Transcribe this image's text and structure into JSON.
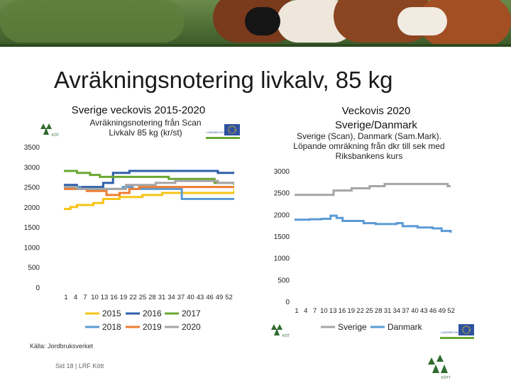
{
  "title": "Avräkningsnotering livkalv, 85 kg",
  "left": {
    "heading": "Sverige veckovis 2015-2020",
    "note_line1": "Avräkningsnotering från Scan",
    "note_line2": "Livkalv 85 kg (kr/st)"
  },
  "right": {
    "heading_line1": "Veckovis 2020",
    "heading_line2": "Sverige/Danmark",
    "note_line1": "Sverige (Scan), Danmark (Sam.Mark).",
    "note_line2": "Löpande omräkning från dkr till sek med",
    "note_line3": "Riksbankens kurs"
  },
  "logos": {
    "kott_text": "KÖTT",
    "lantbruk_text": "LANDSBYGDSPLAN"
  },
  "source": "Källa: Jordbruksverket",
  "footer": "Sid 18 | LRF Kött",
  "colors": {
    "2015": "#f5c518",
    "2016": "#2e5fa8",
    "2017": "#6aa832",
    "2018": "#5b9bd5",
    "2019": "#ed7d31",
    "2020": "#a5a5a5",
    "Sverige": "#a5a5a5",
    "Danmark": "#5b9bd5"
  },
  "chart_data": [
    {
      "type": "line",
      "title": "",
      "ylim": [
        0,
        3500
      ],
      "yticks": [
        "0",
        "500",
        "1000",
        "1500",
        "2000",
        "2500",
        "3000",
        "3500"
      ],
      "xticks": [
        "1",
        "4",
        "7",
        "10",
        "13",
        "16",
        "19",
        "22",
        "25",
        "28",
        "31",
        "34",
        "37",
        "40",
        "43",
        "46",
        "49",
        "52"
      ],
      "xrange": [
        1,
        53
      ],
      "legend": "bottom",
      "series": [
        {
          "name": "2015",
          "points": [
            [
              1,
              1950
            ],
            [
              3,
              2000
            ],
            [
              5,
              2050
            ],
            [
              10,
              2100
            ],
            [
              13,
              2200
            ],
            [
              18,
              2250
            ],
            [
              25,
              2300
            ],
            [
              31,
              2350
            ],
            [
              53,
              2450
            ]
          ]
        },
        {
          "name": "2016",
          "points": [
            [
              1,
              2550
            ],
            [
              5,
              2500
            ],
            [
              13,
              2600
            ],
            [
              16,
              2850
            ],
            [
              21,
              2900
            ],
            [
              45,
              2900
            ],
            [
              48,
              2850
            ],
            [
              53,
              2850
            ]
          ]
        },
        {
          "name": "2017",
          "points": [
            [
              1,
              2900
            ],
            [
              5,
              2850
            ],
            [
              9,
              2800
            ],
            [
              12,
              2750
            ],
            [
              28,
              2750
            ],
            [
              33,
              2700
            ],
            [
              44,
              2700
            ],
            [
              47,
              2600
            ],
            [
              53,
              2550
            ]
          ]
        },
        {
          "name": "2018",
          "points": [
            [
              1,
              2450
            ],
            [
              3,
              2500
            ],
            [
              6,
              2450
            ],
            [
              14,
              2450
            ],
            [
              19,
              2500
            ],
            [
              22,
              2450
            ],
            [
              35,
              2450
            ],
            [
              37,
              2200
            ],
            [
              53,
              2200
            ]
          ]
        },
        {
          "name": "2019",
          "points": [
            [
              1,
              2450
            ],
            [
              8,
              2400
            ],
            [
              14,
              2300
            ],
            [
              18,
              2350
            ],
            [
              21,
              2450
            ],
            [
              24,
              2500
            ],
            [
              53,
              2500
            ]
          ]
        },
        {
          "name": "2020",
          "points": [
            [
              1,
              2500
            ],
            [
              5,
              2450
            ],
            [
              13,
              2450
            ],
            [
              20,
              2550
            ],
            [
              26,
              2550
            ],
            [
              29,
              2600
            ],
            [
              35,
              2650
            ],
            [
              44,
              2650
            ],
            [
              48,
              2600
            ],
            [
              53,
              2600
            ]
          ]
        }
      ]
    },
    {
      "type": "line",
      "title": "",
      "ylim": [
        0,
        3000
      ],
      "yticks": [
        "0",
        "500",
        "1000",
        "1500",
        "2000",
        "2500",
        "3000"
      ],
      "xticks": [
        "1",
        "4",
        "7",
        "10",
        "13",
        "16",
        "19",
        "22",
        "25",
        "28",
        "31",
        "34",
        "37",
        "40",
        "43",
        "46",
        "49",
        "52"
      ],
      "xrange": [
        1,
        53
      ],
      "legend": "bottom",
      "series": [
        {
          "name": "Sverige",
          "points": [
            [
              1,
              2450
            ],
            [
              13,
              2450
            ],
            [
              14,
              2550
            ],
            [
              19,
              2550
            ],
            [
              20,
              2600
            ],
            [
              23,
              2600
            ],
            [
              26,
              2650
            ],
            [
              30,
              2650
            ],
            [
              31,
              2700
            ],
            [
              51,
              2700
            ],
            [
              52,
              2650
            ],
            [
              53,
              2650
            ]
          ]
        },
        {
          "name": "Danmark",
          "points": [
            [
              1,
              1880
            ],
            [
              6,
              1890
            ],
            [
              10,
              1900
            ],
            [
              13,
              1970
            ],
            [
              15,
              1920
            ],
            [
              17,
              1850
            ],
            [
              24,
              1800
            ],
            [
              28,
              1780
            ],
            [
              35,
              1800
            ],
            [
              37,
              1730
            ],
            [
              42,
              1700
            ],
            [
              47,
              1680
            ],
            [
              50,
              1620
            ],
            [
              53,
              1580
            ]
          ]
        }
      ]
    }
  ]
}
